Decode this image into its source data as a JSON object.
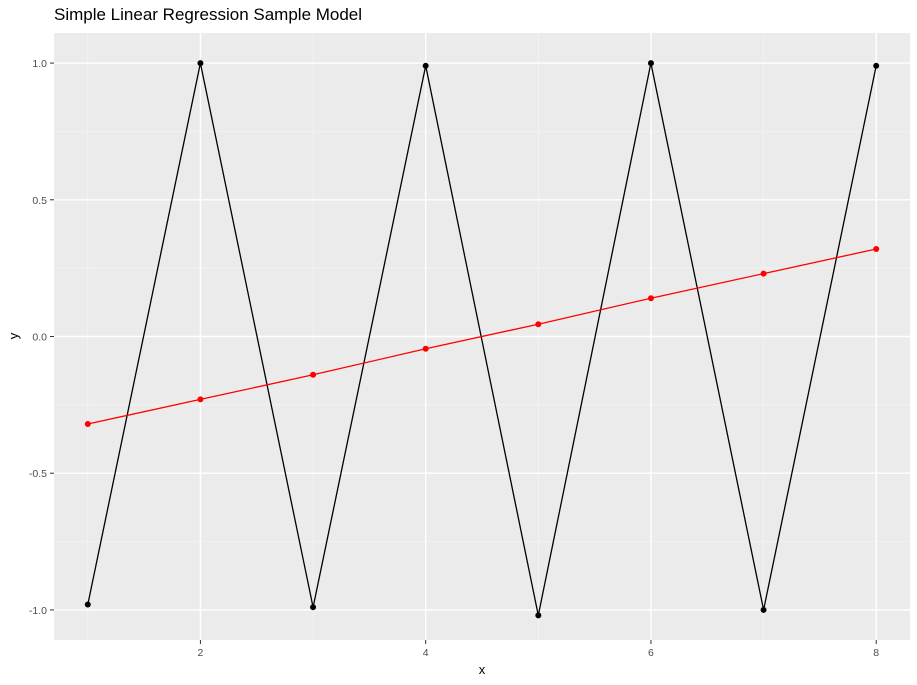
{
  "chart_data": {
    "type": "line",
    "title": "Simple Linear Regression Sample Model",
    "xlabel": "x",
    "ylabel": "y",
    "xlim": [
      0.7,
      8.3
    ],
    "ylim": [
      -1.11,
      1.11
    ],
    "x_ticks": [
      2,
      4,
      6,
      8
    ],
    "x_tick_labels": [
      "2",
      "4",
      "6",
      "8"
    ],
    "y_ticks": [
      -1.0,
      -0.5,
      0.0,
      0.5,
      1.0
    ],
    "y_tick_labels": [
      "-1.0",
      "-0.5",
      "0.0",
      "0.5",
      "1.0"
    ],
    "grid": true,
    "background": "#ebebeb",
    "series": [
      {
        "color": "#000000",
        "x": [
          1,
          2,
          3,
          4,
          5,
          6,
          7,
          8
        ],
        "y": [
          -0.98,
          1.0,
          -0.99,
          0.99,
          -1.02,
          1.0,
          -1.0,
          0.99
        ]
      },
      {
        "color": "#ff0000",
        "x": [
          1,
          2,
          3,
          4,
          5,
          6,
          7,
          8
        ],
        "y": [
          -0.32,
          -0.23,
          -0.14,
          -0.045,
          0.045,
          0.14,
          0.23,
          0.32
        ]
      }
    ]
  }
}
